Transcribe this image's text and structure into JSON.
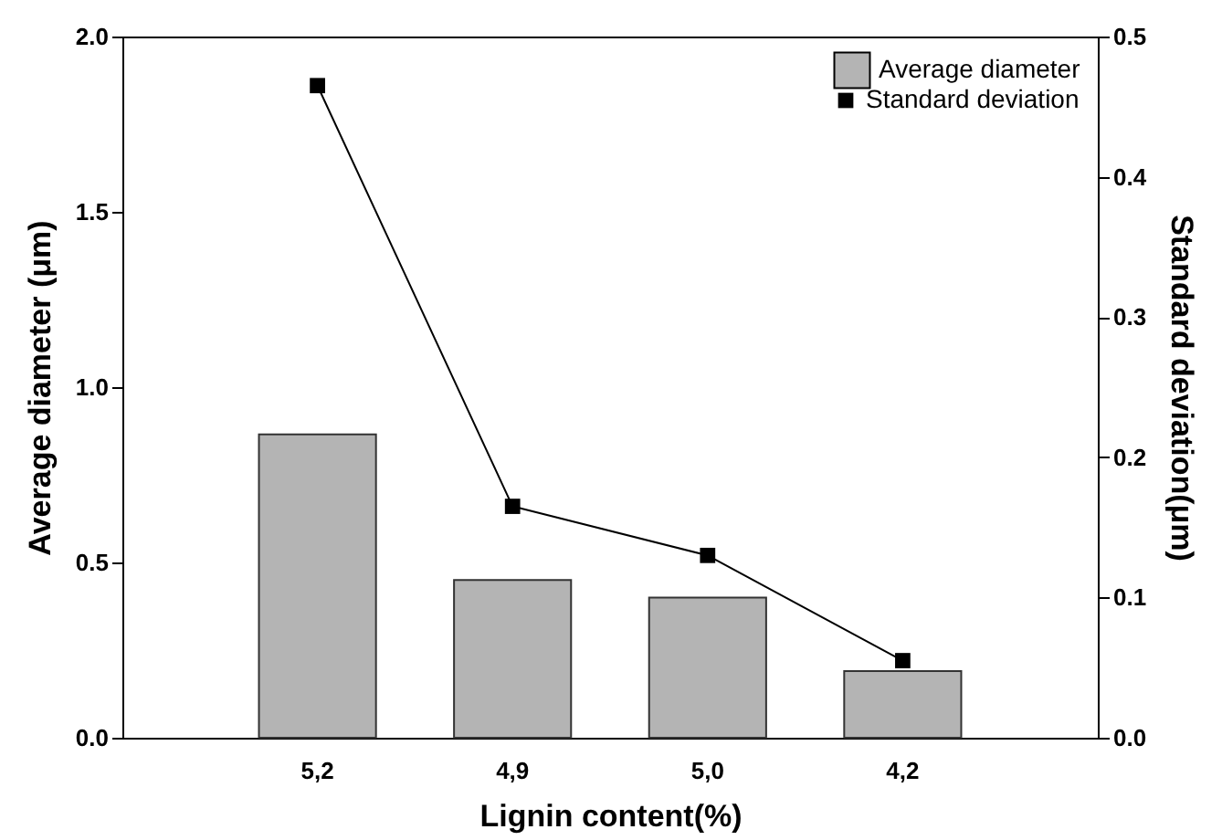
{
  "chart_data": {
    "type": "bar",
    "xlabel": "Lignin content(%)",
    "ylabel": "Average diameter (μm)",
    "y2label": "Standard deviation(μm)",
    "categories": [
      "5,2",
      "4,9",
      "5,0",
      "4,2"
    ],
    "series": [
      {
        "name": "Average diameter",
        "color": "#b4b4b4",
        "values": [
          0.865,
          0.45,
          0.4,
          0.19
        ]
      },
      {
        "name": "Standard deviation",
        "type": "line",
        "axis": "y2",
        "color": "#000000",
        "values": [
          0.465,
          0.165,
          0.13,
          0.055
        ]
      }
    ],
    "ylim": [
      0,
      2.0
    ],
    "yticks": [
      {
        "value": 0,
        "label": "0.0"
      },
      {
        "value": 0.5,
        "label": "0.5"
      },
      {
        "value": 1,
        "label": "1.0"
      },
      {
        "value": 1.5,
        "label": "1.5"
      },
      {
        "value": 2,
        "label": "2.0"
      }
    ],
    "y2lim": [
      0,
      0.5
    ],
    "y2ticks": [
      {
        "value": 0,
        "label": "0.0"
      },
      0.1,
      0.2,
      0.3,
      0.4,
      0.5
    ],
    "legend": "top right",
    "marker": "square",
    "grid": false
  }
}
